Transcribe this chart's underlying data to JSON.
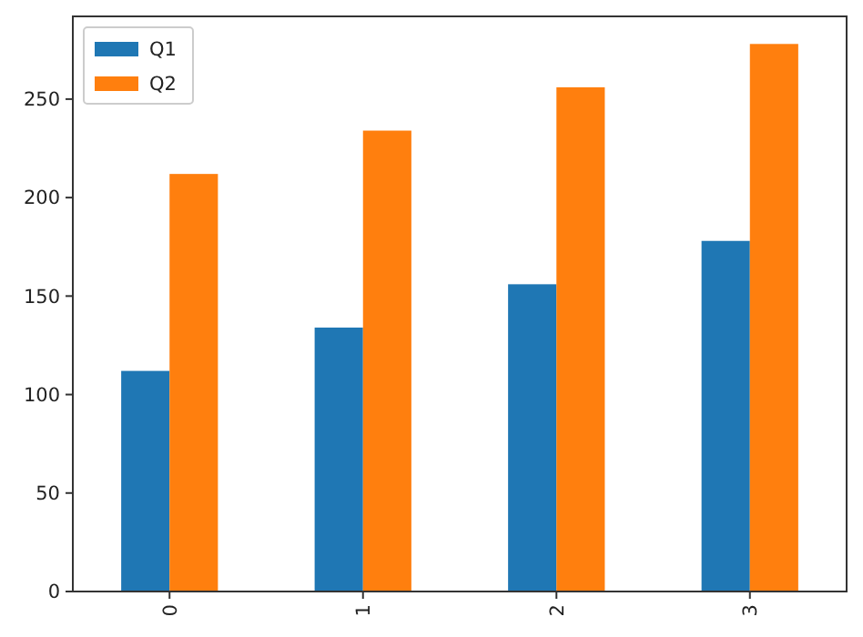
{
  "chart_data": {
    "type": "bar",
    "categories": [
      "0",
      "1",
      "2",
      "3"
    ],
    "series": [
      {
        "name": "Q1",
        "color": "#1f77b4",
        "values": [
          112,
          134,
          156,
          178
        ]
      },
      {
        "name": "Q2",
        "color": "#ff7f0e",
        "values": [
          212,
          234,
          256,
          278
        ]
      }
    ],
    "ylim": [
      0,
      292
    ],
    "yticks": [
      0,
      50,
      100,
      150,
      200,
      250
    ],
    "legend": "top left"
  }
}
